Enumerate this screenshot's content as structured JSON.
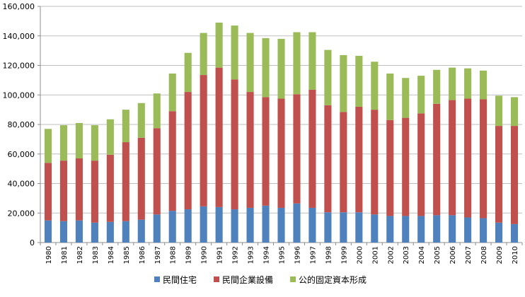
{
  "chart_data": {
    "type": "bar",
    "stacked": true,
    "title": "",
    "xlabel": "",
    "ylabel": "",
    "ylim": [
      0,
      160000
    ],
    "yticks": [
      0,
      20000,
      40000,
      60000,
      80000,
      100000,
      120000,
      140000,
      160000
    ],
    "ytick_labels": [
      "0",
      "20,000",
      "40,000",
      "60,000",
      "80,000",
      "100,000",
      "120,000",
      "140,000",
      "160,000"
    ],
    "grid": "horizontal",
    "legend_position": "bottom",
    "categories": [
      "1980",
      "1981",
      "1982",
      "1983",
      "1984",
      "1985",
      "1986",
      "1987",
      "1988",
      "1989",
      "1990",
      "1991",
      "1992",
      "1993",
      "1994",
      "1995",
      "1996",
      "1997",
      "1998",
      "1999",
      "2000",
      "2001",
      "2002",
      "2003",
      "2004",
      "2005",
      "2006",
      "2007",
      "2008",
      "2009",
      "2010"
    ],
    "series": [
      {
        "name": "民間住宅",
        "color": "#4f81bd",
        "values": [
          15000,
          14500,
          15000,
          13500,
          14000,
          14500,
          15500,
          19000,
          21500,
          22500,
          24500,
          24000,
          22500,
          23500,
          25000,
          23500,
          26500,
          23500,
          20500,
          20500,
          20500,
          19000,
          18000,
          18000,
          18000,
          18500,
          18500,
          17000,
          16500,
          13500,
          12500
        ]
      },
      {
        "name": "民間企業設備",
        "color": "#c0504d",
        "values": [
          39000,
          41000,
          42000,
          42000,
          45500,
          53500,
          55500,
          58500,
          67500,
          79500,
          89000,
          94500,
          88000,
          78500,
          73500,
          74000,
          74000,
          80000,
          72500,
          68000,
          71500,
          71000,
          65000,
          66500,
          69500,
          75500,
          78000,
          80500,
          80500,
          65500,
          66500
        ]
      },
      {
        "name": "公的固定資本形成",
        "color": "#9bbb59",
        "values": [
          23000,
          24000,
          24000,
          24000,
          24000,
          22000,
          23500,
          23500,
          25500,
          26500,
          28500,
          30500,
          36500,
          40000,
          40000,
          40500,
          42000,
          39000,
          37500,
          38500,
          34500,
          32500,
          31500,
          27000,
          25500,
          23000,
          22000,
          20500,
          19500,
          20500,
          19500
        ]
      }
    ]
  }
}
